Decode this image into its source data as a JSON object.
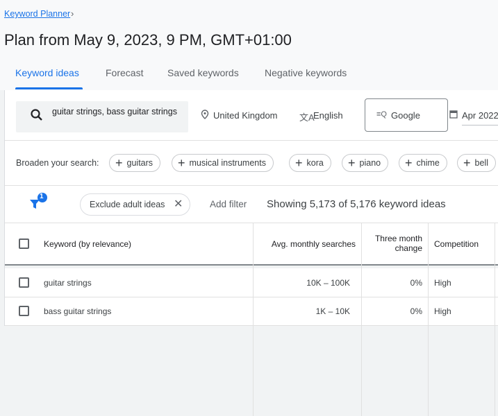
{
  "breadcrumb": {
    "label": "Keyword Planner"
  },
  "title": "Plan from May 9, 2023, 9 PM, GMT+01:00",
  "tabs": [
    {
      "label": "Keyword ideas",
      "active": true
    },
    {
      "label": "Forecast"
    },
    {
      "label": "Saved keywords"
    },
    {
      "label": "Negative keywords"
    }
  ],
  "search": {
    "value": "guitar strings, bass guitar strings",
    "location": "United Kingdom",
    "language": "English",
    "network": "Google",
    "date": "Apr 2022"
  },
  "broaden": {
    "label": "Broaden your search:",
    "chips": [
      "guitars",
      "musical instruments",
      "kora",
      "piano",
      "chime",
      "bell"
    ]
  },
  "filters": {
    "badge": "1",
    "chip": "Exclude adult ideas",
    "add": "Add filter",
    "status": "Showing 5,173 of 5,176 keyword ideas"
  },
  "table": {
    "headers": [
      "Keyword (by relevance)",
      "Avg. monthly searches",
      "Three month change",
      "Competition"
    ],
    "rows": [
      [
        "guitar strings",
        "10K – 100K",
        "0%",
        "High"
      ],
      [
        "bass guitar strings",
        "1K – 10K",
        "0%",
        "High"
      ]
    ]
  },
  "colors": {
    "accent": "#1a73e8"
  }
}
